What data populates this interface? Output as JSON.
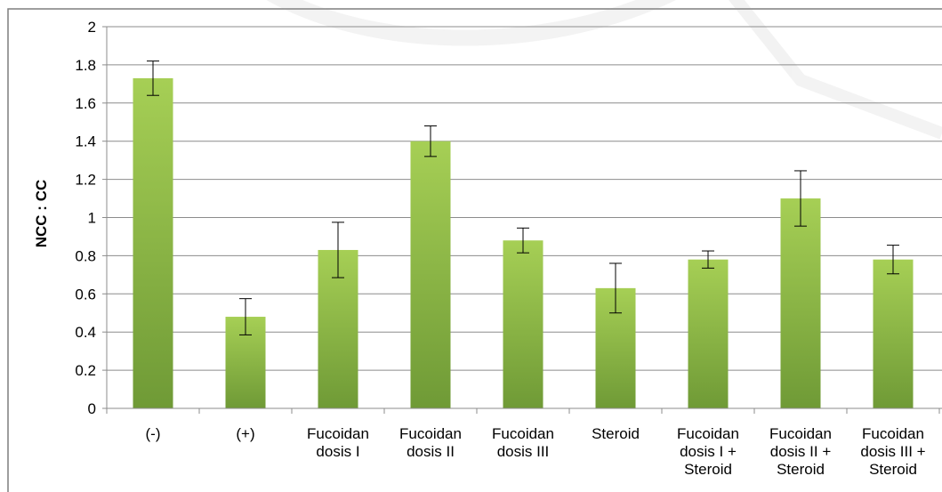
{
  "chart_data": {
    "type": "bar",
    "ylabel": "NCC : CC",
    "xlabel": "",
    "ylim": [
      0,
      2
    ],
    "yticks": [
      0,
      0.2,
      0.4,
      0.6,
      0.8,
      1,
      1.2,
      1.4,
      1.6,
      1.8,
      2
    ],
    "grid": true,
    "categories": [
      [
        "(-)"
      ],
      [
        "(+)"
      ],
      [
        "Fucoidan",
        "dosis I"
      ],
      [
        "Fucoidan",
        "dosis II"
      ],
      [
        "Fucoidan",
        "dosis III"
      ],
      [
        "Steroid"
      ],
      [
        "Fucoidan",
        "dosis I +",
        "Steroid"
      ],
      [
        "Fucoidan",
        "dosis II +",
        "Steroid"
      ],
      [
        "Fucoidan",
        "dosis III +",
        "Steroid"
      ]
    ],
    "values": [
      1.73,
      0.48,
      0.83,
      1.4,
      0.88,
      0.63,
      0.78,
      1.1,
      0.78
    ],
    "errors": [
      0.09,
      0.095,
      0.145,
      0.08,
      0.065,
      0.13,
      0.045,
      0.145,
      0.075
    ],
    "colors": {
      "bar_light": "#a6cf55",
      "bar_dark": "#6f9a36",
      "grid": "#8c8c8c",
      "axis": "#8c8c8c",
      "border": "#7f7f7f"
    }
  }
}
